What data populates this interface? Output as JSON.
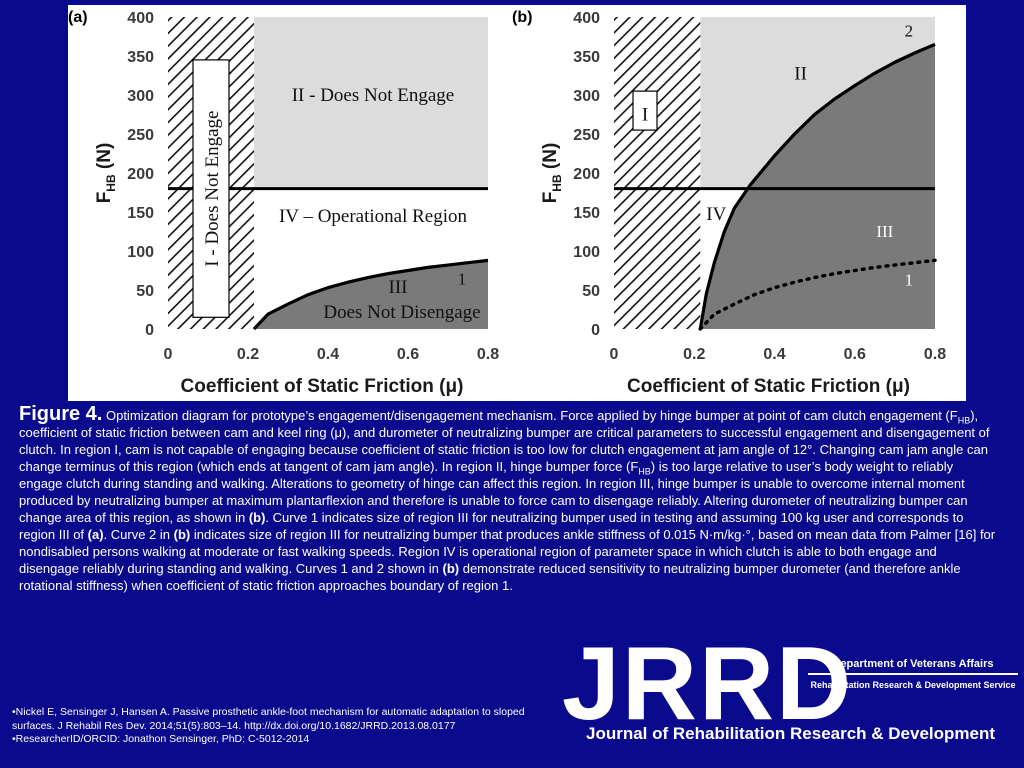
{
  "chart_data": [
    {
      "type": "area",
      "panel_label": "(a)",
      "xlabel": "Coefficient of Static Friction (μ)",
      "ylabel": "F",
      "ylabel_sub": "HB",
      "ylabel_unit": " (N)",
      "xlim": [
        0,
        0.8
      ],
      "ylim": [
        0,
        400
      ],
      "x_ticks": [
        "0",
        "0.2",
        "0.4",
        "0.6",
        "0.8"
      ],
      "y_ticks": [
        "0",
        "50",
        "100",
        "150",
        "200",
        "250",
        "300",
        "350",
        "400"
      ],
      "grid": false,
      "threshold_line_y": 180,
      "hatched_region_x": [
        0,
        0.215
      ],
      "regions": [
        {
          "label": "I - Does Not Engage",
          "fill": "hatched"
        },
        {
          "label": "II - Does Not Engage",
          "fill": "#dcdcdc"
        },
        {
          "label": "IV – Operational Region",
          "fill": "#ffffff"
        },
        {
          "label_lines": [
            "III",
            "Does Not Disengage"
          ],
          "fill": "#7a7a7a"
        }
      ],
      "series": [
        {
          "name": "1",
          "style": "solid",
          "x": [
            0.215,
            0.25,
            0.3,
            0.35,
            0.4,
            0.45,
            0.5,
            0.55,
            0.6,
            0.65,
            0.7,
            0.75,
            0.8
          ],
          "y": [
            0,
            19,
            32,
            44,
            53,
            60,
            66,
            71,
            75,
            79,
            82,
            85,
            88
          ]
        }
      ]
    },
    {
      "type": "area",
      "panel_label": "(b)",
      "xlabel": "Coefficient of Static Friction (μ)",
      "ylabel": "F",
      "ylabel_sub": "HB",
      "ylabel_unit": " (N)",
      "xlim": [
        0,
        0.8
      ],
      "ylim": [
        0,
        400
      ],
      "x_ticks": [
        "0",
        "0.2",
        "0.4",
        "0.6",
        "0.8"
      ],
      "y_ticks": [
        "0",
        "50",
        "100",
        "150",
        "200",
        "250",
        "300",
        "350",
        "400"
      ],
      "grid": false,
      "threshold_line_y": 180,
      "hatched_region_x": [
        0,
        0.215
      ],
      "regions": [
        {
          "label": "I",
          "fill": "hatched"
        },
        {
          "label": "II",
          "fill": "#dcdcdc"
        },
        {
          "label": "IV",
          "fill": "#ffffff"
        },
        {
          "label": "III",
          "fill": "#7a7a7a"
        }
      ],
      "series": [
        {
          "name": "2",
          "style": "solid",
          "x": [
            0.215,
            0.23,
            0.25,
            0.275,
            0.3,
            0.34,
            0.4,
            0.45,
            0.5,
            0.55,
            0.6,
            0.65,
            0.7,
            0.75,
            0.8
          ],
          "y": [
            0,
            45,
            85,
            125,
            155,
            185,
            222,
            250,
            275,
            295,
            312,
            328,
            342,
            354,
            365
          ]
        },
        {
          "name": "1",
          "style": "dotted",
          "x": [
            0.215,
            0.25,
            0.3,
            0.35,
            0.4,
            0.45,
            0.5,
            0.55,
            0.6,
            0.65,
            0.7,
            0.75,
            0.8
          ],
          "y": [
            0,
            19,
            32,
            44,
            53,
            60,
            66,
            71,
            75,
            79,
            82,
            85,
            88
          ]
        }
      ]
    }
  ],
  "caption": {
    "title": "Figure 4.",
    "p1": " Optimization diagram for prototype’s engagement/disengagement mechanism. Force applied by hinge bumper at point of cam clutch engagement (F",
    "sub1": "HB",
    "p2": "), coefficient of static friction between cam and keel ring (μ), and durometer of neutralizing bumper are critical parameters to successful engagement and disengagement of clutch. In region I, cam is not capable of engaging because coefficient of static friction is too low for clutch engagement at jam angle of 12°. Changing cam jam angle can change terminus of this region (which ends at tangent of cam jam angle). In region II, hinge bumper force (F",
    "sub2": "HB",
    "p3": ") is too large relative to user’s body weight to reliably engage clutch during standing and walking. Alterations to geometry of hinge can affect this region. In region III, hinge bumper is unable to overcome internal moment produced by neutralizing bumper at maximum plantarflexion and therefore is unable to force cam to disengage reliably. Altering durometer of neutralizing bumper can change area of this region, as shown in ",
    "b1": "(b)",
    "p4": ". Curve 1 indicates size of region III for neutralizing bumper used in testing and assuming 100 kg user and corresponds to region III of ",
    "b2": "(a)",
    "p5": ". Curve 2 in ",
    "b3": "(b)",
    "p6": " indicates size of region III for neutralizing bumper that produces ankle stiffness of 0.015 N·m/kg·°, based on mean data from Palmer [16] for nondisabled persons walking at moderate or fast walking speeds. Region IV is operational region of parameter space in which clutch is able to both engage and disengage reliably during standing and walking. Curves 1 and 2 shown in ",
    "b4": "(b)",
    "p7": " demonstrate reduced sensitivity to neutralizing bumper durometer (and therefore ankle rotational stiffness) when coefficient of static friction approaches boundary of region 1."
  },
  "references": {
    "citation": "•Nickel E, Sensinger J, Hansen A. Passive prosthetic ankle-foot mechanism for automatic adaptation to sloped surfaces. J Rehabil Res Dev. 2014;51(5):803–14. http://dx.doi.org/10.1682/JRRD.2013.08.0177",
    "researcher": "•ResearcherID/ORCID: Jonathon Sensinger, PhD: C-5012-2014"
  },
  "branding": {
    "logo": "JRRD",
    "department": "Department of Veterans Affairs",
    "service": "Rehabilitation Research & Development Service",
    "journal": "Journal of Rehabilitation Research & Development"
  },
  "colors": {
    "background": "#0a0a8c",
    "region_gray_light": "#dcdcdc",
    "region_gray_dark": "#7a7a7a"
  }
}
